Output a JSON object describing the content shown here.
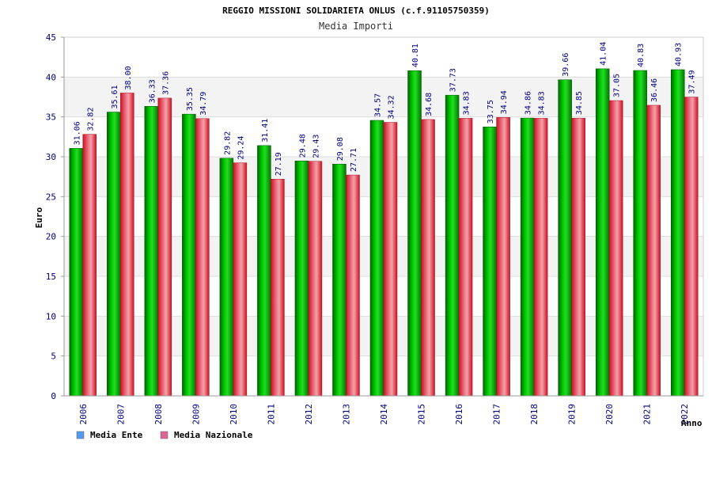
{
  "chart_data": {
    "type": "bar",
    "title": "REGGIO MISSIONI SOLIDARIETA ONLUS (c.f.91105750359)",
    "subtitle": "Media Importi",
    "xlabel": "Anno",
    "ylabel": "Euro",
    "ylim": [
      0,
      45
    ],
    "yticks": [
      0,
      5,
      10,
      15,
      20,
      25,
      30,
      35,
      40,
      45
    ],
    "ytick_labels": [
      "0",
      "5",
      "10",
      "15",
      "20",
      "25",
      "30",
      "35",
      "40",
      "45"
    ],
    "grid": true,
    "legend_position": "bottom-left",
    "categories": [
      "2006",
      "2007",
      "2008",
      "2009",
      "2010",
      "2011",
      "2012",
      "2013",
      "2014",
      "2015",
      "2016",
      "2017",
      "2018",
      "2019",
      "2020",
      "2021",
      "2022"
    ],
    "series": [
      {
        "name": "Media Ente",
        "color": "#00aa00",
        "legend_color": "#5599ee",
        "values": [
          31.06,
          35.61,
          36.33,
          35.35,
          29.82,
          31.41,
          29.48,
          29.08,
          34.57,
          40.81,
          37.73,
          33.75,
          34.86,
          39.66,
          41.04,
          40.83,
          40.93
        ],
        "labels": [
          "31.06",
          "35.61",
          "36.33",
          "35.35",
          "29.82",
          "31.41",
          "29.48",
          "29.08",
          "34.57",
          "40.81",
          "37.73",
          "33.75",
          "34.86",
          "39.66",
          "41.04",
          "40.83",
          "40.93"
        ]
      },
      {
        "name": "Media Nazionale",
        "color": "#dd2233",
        "legend_color": "#dd6699",
        "values": [
          32.82,
          38.0,
          37.36,
          34.79,
          29.24,
          27.19,
          29.43,
          27.71,
          34.32,
          34.68,
          34.83,
          34.94,
          34.83,
          34.85,
          37.05,
          36.46,
          37.49
        ],
        "labels": [
          "32.82",
          "38.00",
          "37.36",
          "34.79",
          "29.24",
          "27.19",
          "29.43",
          "27.71",
          "34.32",
          "34.68",
          "34.83",
          "34.94",
          "34.83",
          "34.85",
          "37.05",
          "36.46",
          "37.49"
        ]
      }
    ]
  }
}
